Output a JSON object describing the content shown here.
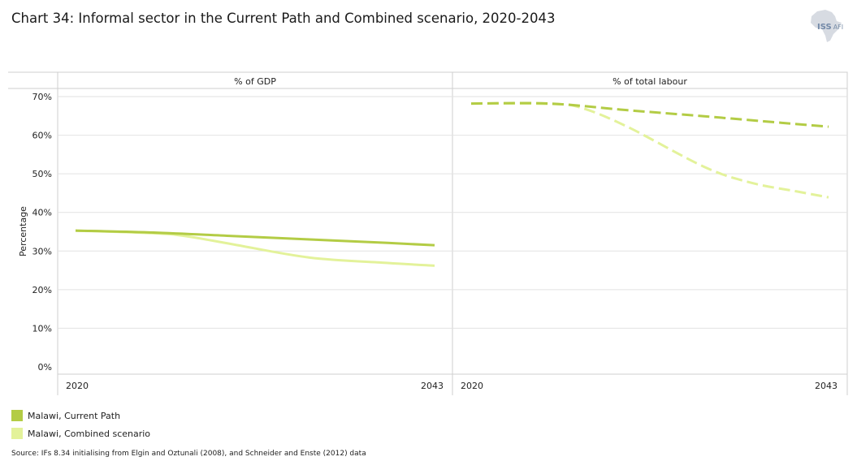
{
  "title": "Chart 34: Informal sector in the Current Path and Combined scenario, 2020-2043",
  "logo": {
    "main": "ISS",
    "sub": "AFI"
  },
  "colors": {
    "current": "#b3cc45",
    "combined": "#e3f29a",
    "grid": "#e2e2e2",
    "axis": "#cfcfcf"
  },
  "chart_data": {
    "type": "line",
    "ylabel": "Percentage",
    "ylim": [
      0,
      70
    ],
    "yticks": [
      {
        "v": 0,
        "label": "0%"
      },
      {
        "v": 10,
        "label": "10%"
      },
      {
        "v": 20,
        "label": "20%"
      },
      {
        "v": 30,
        "label": "30%"
      },
      {
        "v": 40,
        "label": "40%"
      },
      {
        "v": 50,
        "label": "50%"
      },
      {
        "v": 60,
        "label": "60%"
      },
      {
        "v": 70,
        "label": "70%"
      }
    ],
    "panels": [
      {
        "title": "% of GDP",
        "xlabels": [
          "2020",
          "2043"
        ],
        "dashed": false,
        "series": [
          {
            "name": "Malawi, Current Path",
            "x": [
              2020,
              2025,
              2030,
              2035,
              2040,
              2043
            ],
            "values": [
              35.3,
              34.8,
              33.9,
              33.0,
              32.1,
              31.5
            ]
          },
          {
            "name": "Malawi, Combined scenario",
            "x": [
              2020,
              2025,
              2027,
              2030,
              2035,
              2040,
              2043
            ],
            "values": [
              35.3,
              34.6,
              33.9,
              31.8,
              28.3,
              26.9,
              26.2
            ]
          }
        ]
      },
      {
        "title": "% of total labour",
        "xlabels": [
          "2020",
          "2043"
        ],
        "dashed": true,
        "series": [
          {
            "name": "Malawi, Current Path",
            "x": [
              2020,
              2025,
              2030,
              2035,
              2040,
              2043
            ],
            "values": [
              68.2,
              68.2,
              66.5,
              64.9,
              63.2,
              62.2
            ]
          },
          {
            "name": "Malawi, Combined scenario",
            "x": [
              2020,
              2025,
              2027,
              2030,
              2035,
              2038,
              2041,
              2043
            ],
            "values": [
              68.2,
              68.1,
              67.2,
              62.3,
              51.8,
              47.7,
              45.4,
              43.9
            ]
          }
        ]
      }
    ],
    "legend": [
      {
        "label": "Malawi, Current Path",
        "color": "#b3cc45"
      },
      {
        "label": "Malawi, Combined scenario",
        "color": "#e3f29a"
      }
    ]
  },
  "source": "Source: IFs 8.34 initialising from Elgin and Oztunali (2008), and Schneider and Enste (2012) data"
}
